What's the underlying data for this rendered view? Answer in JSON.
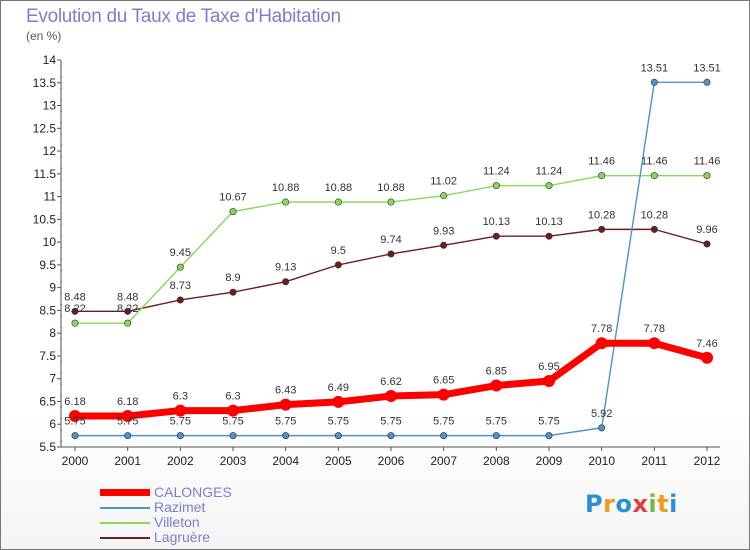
{
  "title": "Evolution du Taux de Taxe d'Habitation",
  "unit": "(en %)",
  "logo": {
    "text": "Proxiti",
    "letters": [
      "P",
      "r",
      "o",
      "x",
      "i",
      "t",
      "i"
    ],
    "colors": [
      "#2a8fd8",
      "#f39a1e",
      "#2a8fd8",
      "#e23c3c",
      "#7ab83a",
      "#f39a1e",
      "#2a8fd8"
    ]
  },
  "chart_data": {
    "type": "line",
    "categories": [
      "2000",
      "2001",
      "2002",
      "2003",
      "2004",
      "2005",
      "2006",
      "2007",
      "2008",
      "2009",
      "2010",
      "2011",
      "2012"
    ],
    "ylim": [
      5.5,
      14
    ],
    "yticks": [
      "5.5",
      "6",
      "6.5",
      "7",
      "7.5",
      "8",
      "8.5",
      "9",
      "9.5",
      "10",
      "10.5",
      "11",
      "11.5",
      "12",
      "12.5",
      "13",
      "13.5",
      "14"
    ],
    "grid": false,
    "legend_position": "bottom-left",
    "series": [
      {
        "name": "CALONGES",
        "color": "#ff0000",
        "values": [
          6.18,
          6.18,
          6.3,
          6.3,
          6.43,
          6.49,
          6.62,
          6.65,
          6.85,
          6.95,
          7.78,
          7.78,
          7.46
        ],
        "labels": [
          "6.18",
          "6.18",
          "6.3",
          "6.3",
          "6.43",
          "6.49",
          "6.62",
          "6.65",
          "6.85",
          "6.95",
          "7.78",
          "7.78",
          "7.46"
        ]
      },
      {
        "name": "Razimet",
        "color": "#4d94c8",
        "values": [
          5.75,
          5.75,
          5.75,
          5.75,
          5.75,
          5.75,
          5.75,
          5.75,
          5.75,
          5.75,
          5.92,
          13.51,
          13.51
        ],
        "labels": [
          "5.75",
          "5.75",
          "5.75",
          "5.75",
          "5.75",
          "5.75",
          "5.75",
          "5.75",
          "5.75",
          "5.75",
          "5.92",
          "13.51",
          "13.51"
        ]
      },
      {
        "name": "Villeton",
        "color": "#88d858",
        "values": [
          8.22,
          8.22,
          9.45,
          10.67,
          10.88,
          10.88,
          10.88,
          11.02,
          11.24,
          11.24,
          11.46,
          11.46,
          11.46
        ],
        "labels": [
          "8.22",
          "8.22",
          "9.45",
          "10.67",
          "10.88",
          "10.88",
          "10.88",
          "11.02",
          "11.24",
          "11.24",
          "11.46",
          "11.46",
          "11.46"
        ]
      },
      {
        "name": "Lagruère",
        "color": "#6b1e1e",
        "values": [
          8.48,
          8.48,
          8.73,
          8.9,
          9.13,
          9.5,
          9.74,
          9.93,
          10.13,
          10.13,
          10.28,
          10.28,
          9.96
        ],
        "labels": [
          "8.48",
          "8.48",
          "8.73",
          "8.9",
          "9.13",
          "9.5",
          "9.74",
          "9.93",
          "10.13",
          "10.13",
          "10.28",
          "10.28",
          "9.96"
        ]
      }
    ]
  }
}
